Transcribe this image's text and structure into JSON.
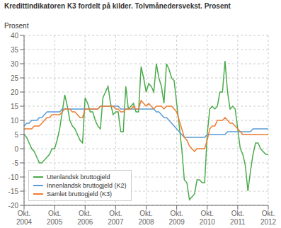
{
  "chart_data": {
    "type": "line",
    "title": "Kredittindikatoren K3 fordelt på kilder. Tolvmånedersvekst. Prosent",
    "ylabel": "Prosent",
    "categories": [
      "Okt.\n2004",
      null,
      null,
      null,
      null,
      null,
      null,
      null,
      null,
      null,
      null,
      null,
      "Okt.\n2005",
      null,
      null,
      null,
      null,
      null,
      null,
      null,
      null,
      null,
      null,
      null,
      "Okt.\n2006",
      null,
      null,
      null,
      null,
      null,
      null,
      null,
      null,
      null,
      null,
      null,
      "Okt.\n2007",
      null,
      null,
      null,
      null,
      null,
      null,
      null,
      null,
      null,
      null,
      null,
      "Okt.\n2008",
      null,
      null,
      null,
      null,
      null,
      null,
      null,
      null,
      null,
      null,
      null,
      "Okt.\n2009",
      null,
      null,
      null,
      null,
      null,
      null,
      null,
      null,
      null,
      null,
      null,
      "Okt.\n2010",
      null,
      null,
      null,
      null,
      null,
      null,
      null,
      null,
      null,
      null,
      null,
      "Okt.\n2011",
      null,
      null,
      null,
      null,
      null,
      null,
      null,
      null,
      null,
      null,
      null,
      "Okt.\n2012"
    ],
    "series": [
      {
        "name": "Utenlandsk bruttogjeld",
        "color": "#4aab4a",
        "values": [
          5,
          4,
          2,
          0,
          -1,
          -3,
          -5,
          -5,
          -4,
          -3,
          -2,
          0,
          0,
          3,
          7,
          13,
          19,
          15,
          10,
          8,
          7,
          5,
          3,
          2,
          18,
          16,
          13,
          13,
          10,
          8,
          7,
          18,
          20,
          22,
          16,
          12,
          13,
          13,
          6,
          6,
          22,
          14,
          15,
          16,
          13,
          13,
          29,
          25,
          20,
          23,
          22,
          20,
          30,
          25,
          22,
          16,
          30,
          28,
          25,
          24,
          16,
          8,
          0,
          -11,
          -12,
          -18,
          -17,
          -16,
          -11,
          -11,
          -12,
          -12,
          5,
          14,
          15,
          14,
          15,
          20,
          20,
          31,
          20,
          14,
          15,
          14,
          7,
          0,
          -2,
          -6,
          -15,
          -8,
          -2,
          2,
          2,
          0,
          -1,
          -2,
          -2
        ]
      },
      {
        "name": "Innenlandsk bruttogjeld (K2)",
        "color": "#5b9bd5",
        "values": [
          8,
          9,
          9,
          10,
          10,
          10,
          11,
          11,
          12,
          13,
          13,
          13,
          13,
          13,
          13,
          14,
          14,
          14,
          14,
          14,
          14,
          14,
          14,
          14,
          14,
          14,
          14,
          14,
          14,
          14,
          15,
          15,
          15,
          15,
          15,
          15,
          15,
          15,
          14,
          14,
          14,
          14,
          14,
          14,
          14,
          14,
          14,
          14,
          14,
          14,
          14,
          14,
          13,
          13,
          12,
          11,
          11,
          10,
          9,
          8,
          7,
          6,
          5,
          4,
          4,
          4,
          4,
          4,
          4,
          4,
          4,
          4,
          5,
          5,
          5,
          5,
          5,
          5,
          5,
          5,
          6,
          6,
          6,
          6,
          6,
          6,
          6,
          6,
          6,
          6,
          7,
          7,
          7,
          7,
          7,
          7,
          7
        ]
      },
      {
        "name": "Samlet bruttogjeld (K3)",
        "color": "#ed7d31",
        "values": [
          7,
          7,
          7,
          7,
          8,
          8,
          8,
          9,
          10,
          11,
          11,
          12,
          12,
          12,
          12,
          13,
          14,
          14,
          14,
          13,
          13,
          12,
          11,
          11,
          14,
          14,
          14,
          14,
          14,
          14,
          15,
          15,
          15,
          15,
          15,
          15,
          14,
          14,
          13,
          13,
          14,
          14,
          14,
          15,
          14,
          14,
          17,
          16,
          15,
          16,
          15,
          14,
          15,
          15,
          15,
          14,
          15,
          15,
          15,
          14,
          13,
          10,
          7,
          4,
          3,
          1,
          0,
          -1,
          0,
          0,
          0,
          0,
          3,
          7,
          8,
          8,
          10,
          10,
          10,
          11,
          10,
          9,
          9,
          8,
          7,
          6,
          5,
          5,
          5,
          5,
          5,
          5,
          5,
          5,
          5,
          5,
          5
        ]
      }
    ],
    "ylim": [
      -20,
      40
    ],
    "yticks": [
      -20,
      -15,
      -10,
      -5,
      0,
      5,
      10,
      15,
      20,
      25,
      30,
      35,
      40
    ],
    "grid": true,
    "legend": "lower left"
  }
}
